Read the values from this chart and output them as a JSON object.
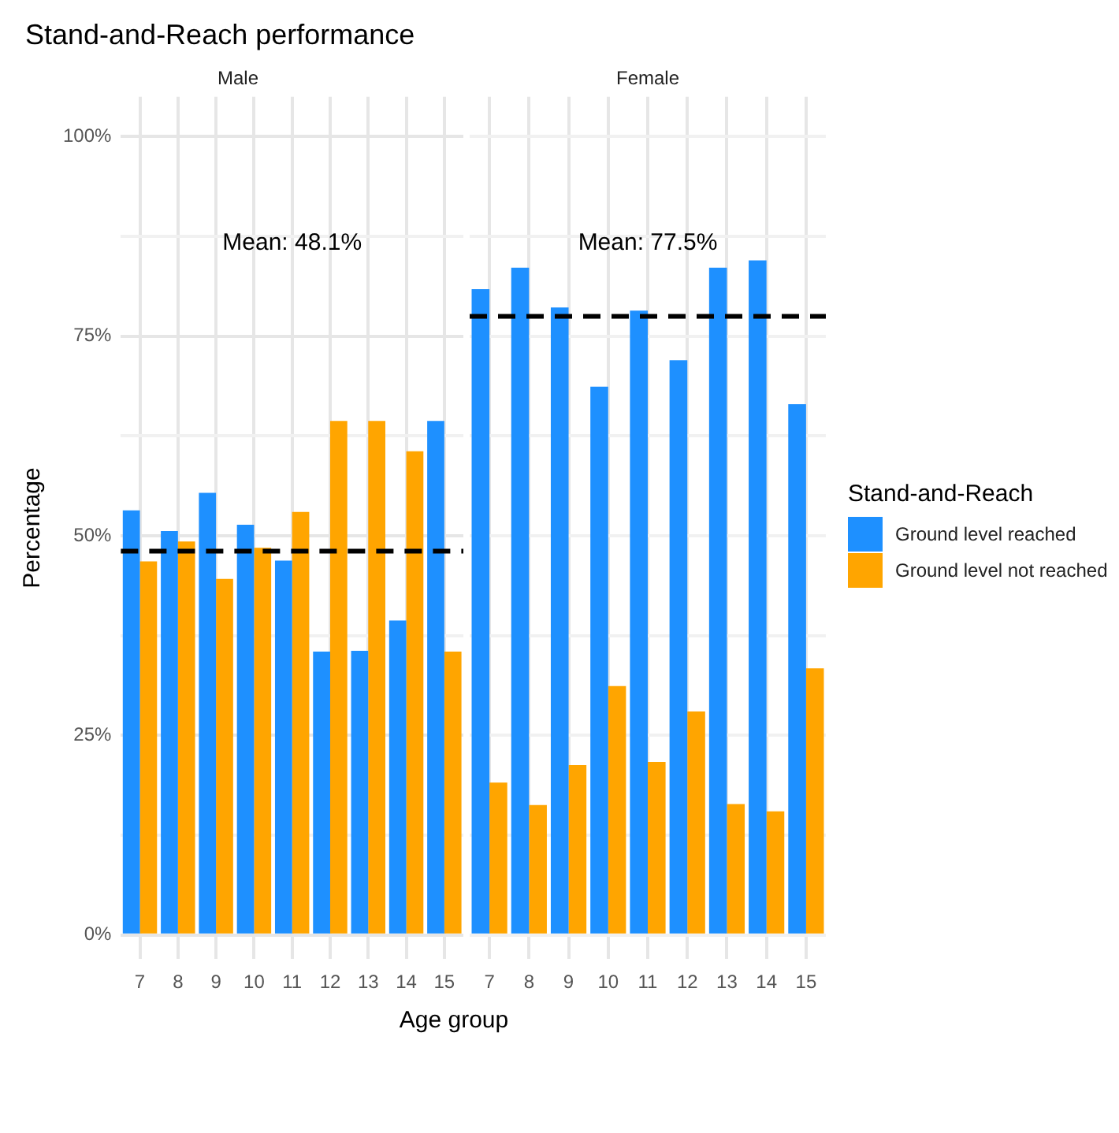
{
  "chart_data": [
    {
      "type": "bar",
      "title": "Stand-and-Reach performance",
      "subtitle": "Male",
      "xlabel": "Age group",
      "ylabel": "Percentage",
      "categories": [
        "7",
        "8",
        "9",
        "10",
        "11",
        "12",
        "13",
        "14",
        "15"
      ],
      "series": [
        {
          "color": "#1e90ff",
          "values": [
            53.2,
            50.6,
            55.4,
            51.4,
            46.9,
            35.5,
            35.6,
            39.4,
            64.4
          ]
        },
        {
          "color": "#ffa500",
          "values": [
            46.8,
            49.3,
            44.6,
            48.5,
            53.0,
            64.4,
            64.4,
            60.6,
            35.5
          ]
        }
      ],
      "ylim": [
        -3,
        105
      ],
      "yticks": [
        {
          "value": 0,
          "label": "0%"
        },
        {
          "value": 12.5,
          "label": null
        },
        {
          "value": 25,
          "label": "25%"
        },
        {
          "value": 37.5,
          "label": null
        },
        {
          "value": 50,
          "label": "50%"
        },
        {
          "value": 62.5,
          "label": null
        },
        {
          "value": 75,
          "label": "75%"
        },
        {
          "value": 87.5,
          "label": null
        },
        {
          "value": 100,
          "label": "100%"
        }
      ],
      "ref_lines": [
        {
          "axis": "y",
          "value": 48.1,
          "color": "#000000",
          "line_style": "dashed"
        }
      ],
      "annotations": [
        "Mean: 48.1%"
      ],
      "grid": true
    },
    {
      "type": "bar",
      "subtitle": "Female",
      "legend_title": "Stand-and-Reach",
      "categories": [
        "7",
        "8",
        "9",
        "10",
        "11",
        "12",
        "13",
        "14",
        "15"
      ],
      "series": [
        {
          "name": "Ground level reached",
          "color": "#1e90ff",
          "values": [
            80.9,
            83.6,
            78.6,
            68.7,
            78.2,
            72.0,
            83.6,
            84.5,
            66.5
          ]
        },
        {
          "name": "Ground level not reached",
          "color": "#ffa500",
          "values": [
            19.1,
            16.3,
            21.3,
            31.2,
            21.7,
            28.0,
            16.4,
            15.5,
            33.4
          ]
        }
      ],
      "ylim": [
        -3,
        105
      ],
      "yticks": [
        {
          "value": 0,
          "label": null
        },
        {
          "value": 12.5,
          "label": null
        },
        {
          "value": 25,
          "label": null
        },
        {
          "value": 37.5,
          "label": null
        },
        {
          "value": 50,
          "label": null
        },
        {
          "value": 62.5,
          "label": null
        },
        {
          "value": 75,
          "label": null
        },
        {
          "value": 87.5,
          "label": null
        },
        {
          "value": 100,
          "label": null
        }
      ],
      "ref_lines": [
        {
          "axis": "y",
          "value": 77.5,
          "color": "#000000",
          "line_style": "dashed"
        }
      ],
      "annotations": [
        "Mean: 77.5%"
      ],
      "grid": true,
      "tick_labels": "x",
      "legend": "right"
    }
  ]
}
